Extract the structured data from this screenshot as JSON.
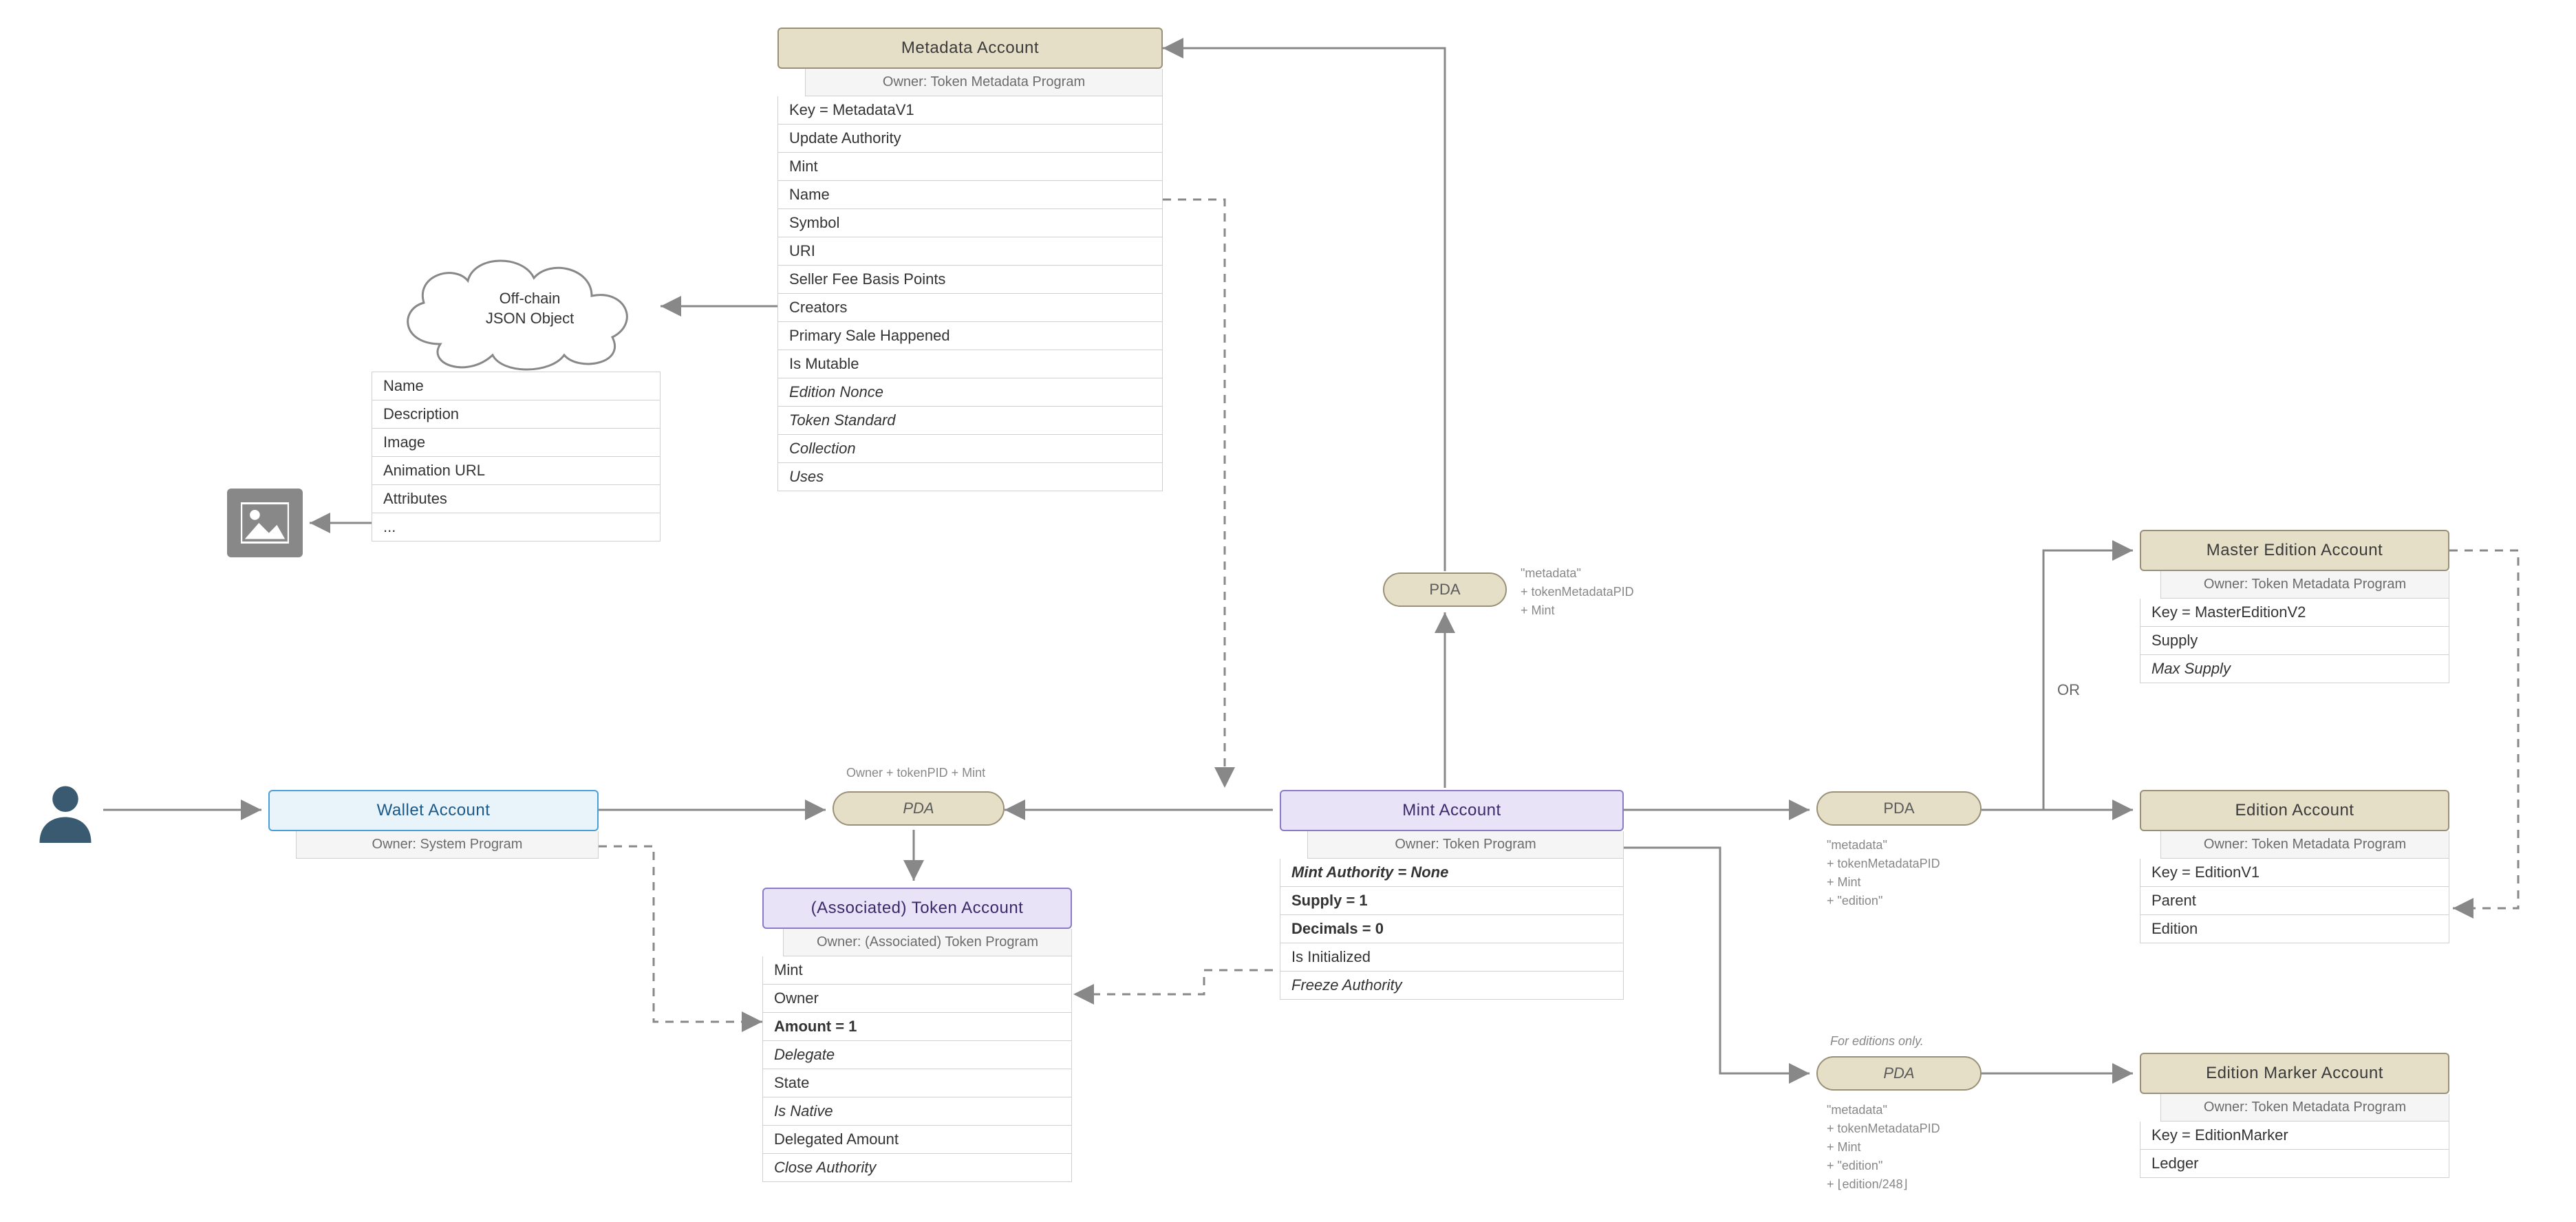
{
  "colors": {
    "tan_fill": "#e6dfc8",
    "tan_border": "#9a9078",
    "blue_fill": "#e8f3fa",
    "blue_border": "#4a9fd8",
    "purple_fill": "#e9e3f8",
    "purple_border": "#8a7ac8",
    "arrow": "#888888",
    "text_gray": "#6b6b6b",
    "bg": "#ffffff"
  },
  "metadata_account": {
    "title": "Metadata Account",
    "owner": "Owner: Token Metadata Program",
    "rows": [
      {
        "text": "Key = MetadataV1",
        "style": ""
      },
      {
        "text": "Update Authority",
        "style": ""
      },
      {
        "text": "Mint",
        "style": ""
      },
      {
        "text": "Name",
        "style": ""
      },
      {
        "text": "Symbol",
        "style": ""
      },
      {
        "text": "URI",
        "style": ""
      },
      {
        "text": "Seller Fee Basis Points",
        "style": ""
      },
      {
        "text": "Creators",
        "style": ""
      },
      {
        "text": "Primary Sale Happened",
        "style": ""
      },
      {
        "text": "Is Mutable",
        "style": ""
      },
      {
        "text": "Edition Nonce",
        "style": "italic"
      },
      {
        "text": "Token Standard",
        "style": "italic"
      },
      {
        "text": "Collection",
        "style": "italic"
      },
      {
        "text": "Uses",
        "style": "italic"
      }
    ]
  },
  "offchain": {
    "title_line1": "Off-chain",
    "title_line2": "JSON Object",
    "rows": [
      "Name",
      "Description",
      "Image",
      "Animation URL",
      "Attributes",
      "..."
    ]
  },
  "wallet_account": {
    "title": "Wallet Account",
    "owner": "Owner: System Program"
  },
  "token_account": {
    "title": "(Associated) Token Account",
    "owner": "Owner: (Associated) Token Program",
    "rows": [
      {
        "text": "Mint",
        "style": ""
      },
      {
        "text": "Owner",
        "style": ""
      },
      {
        "text": "Amount = 1",
        "style": "bold"
      },
      {
        "text": "Delegate",
        "style": "italic"
      },
      {
        "text": "State",
        "style": ""
      },
      {
        "text": "Is Native",
        "style": "italic"
      },
      {
        "text": "Delegated Amount",
        "style": ""
      },
      {
        "text": "Close Authority",
        "style": "italic"
      }
    ]
  },
  "mint_account": {
    "title": "Mint Account",
    "owner": "Owner: Token Program",
    "rows": [
      {
        "text": "Mint Authority = None",
        "style": "bolditalic"
      },
      {
        "text": "Supply = 1",
        "style": "bold"
      },
      {
        "text": "Decimals = 0",
        "style": "bold"
      },
      {
        "text": "Is Initialized",
        "style": ""
      },
      {
        "text": "Freeze Authority",
        "style": "italic"
      }
    ]
  },
  "master_edition": {
    "title": "Master Edition Account",
    "owner": "Owner: Token Metadata Program",
    "rows": [
      {
        "text": "Key = MasterEditionV2",
        "style": ""
      },
      {
        "text": "Supply",
        "style": ""
      },
      {
        "text": "Max Supply",
        "style": "italic"
      }
    ]
  },
  "edition_account": {
    "title": "Edition Account",
    "owner": "Owner: Token Metadata Program",
    "rows": [
      {
        "text": "Key = EditionV1",
        "style": ""
      },
      {
        "text": "Parent",
        "style": ""
      },
      {
        "text": "Edition",
        "style": ""
      }
    ]
  },
  "edition_marker": {
    "title": "Edition Marker Account",
    "owner": "Owner: Token Metadata Program",
    "rows": [
      {
        "text": "Key = EditionMarker",
        "style": ""
      },
      {
        "text": "Ledger",
        "style": ""
      }
    ]
  },
  "pda_labels": {
    "pda": "PDA"
  },
  "annotations": {
    "pda1_top": "Owner + tokenPID + Mint",
    "pda2": "\"metadata\"\n+ tokenMetadataPID\n+ Mint",
    "pda3": "\"metadata\"\n+ tokenMetadataPID\n+ Mint\n+ \"edition\"",
    "pda4_title": "For editions only.",
    "pda4": "\"metadata\"\n+ tokenMetadataPID\n+ Mint\n+ \"edition\"\n+ ⌊edition/248⌋",
    "or": "OR"
  }
}
